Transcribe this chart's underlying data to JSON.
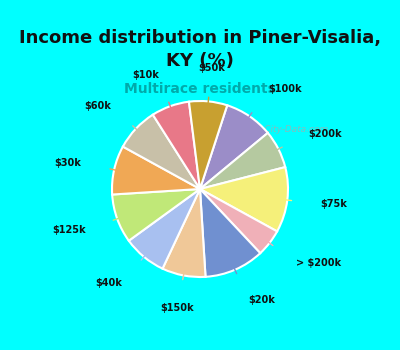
{
  "title": "Income distribution in Piner-Visalia,\nKY (%)",
  "subtitle": "Multirace residents",
  "title_fontsize": 13,
  "subtitle_fontsize": 10,
  "labels": [
    "$100k",
    "$200k",
    "$75k",
    "> $200k",
    "$20k",
    "$150k",
    "$40k",
    "$125k",
    "$30k",
    "$60k",
    "$10k",
    "$50k"
  ],
  "values": [
    9,
    7,
    12,
    5,
    11,
    8,
    8,
    9,
    9,
    8,
    7,
    7
  ],
  "colors": [
    "#9b8dc8",
    "#b5c9a0",
    "#f5f07a",
    "#f0b0b8",
    "#7090d0",
    "#f0c898",
    "#a8c0f0",
    "#c0e878",
    "#f0a855",
    "#c8c0a8",
    "#e87888",
    "#c8a030"
  ],
  "watermark": "ⓘ City-Data.com",
  "fig_width": 4.0,
  "fig_height": 3.5,
  "dpi": 100,
  "cyan_bg": "#00ffff",
  "chart_bg_color": "#d8efe0",
  "title_color": "#111111",
  "subtitle_color": "#00aaaa"
}
